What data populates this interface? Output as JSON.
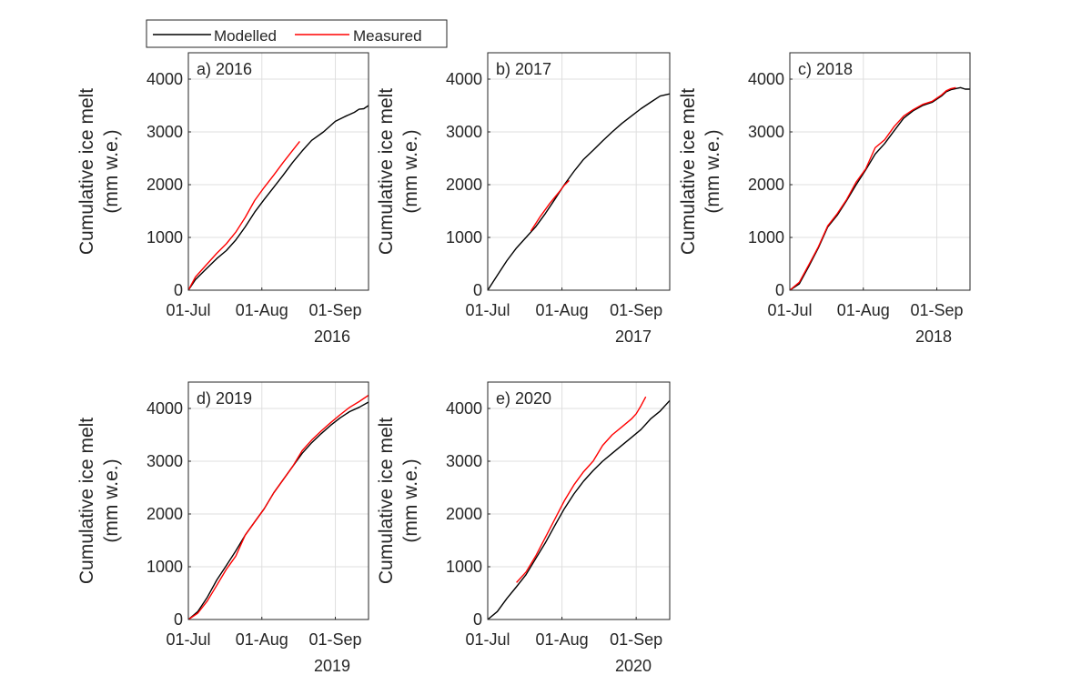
{
  "legend": {
    "entries": [
      {
        "label": "Modelled",
        "color": "#000000"
      },
      {
        "label": "Measured",
        "color": "#ff0000"
      }
    ],
    "placement": "top-left, above panel a"
  },
  "colors": {
    "modelled": "#000000",
    "measured": "#ff0000",
    "grid": "#dfdfdf",
    "axis": "#262626"
  },
  "chart_data": [
    {
      "type": "line",
      "title": "a) 2016",
      "ylabel": [
        "Cumulative ice melt",
        "(mm w.e.)"
      ],
      "xlabel": "2016",
      "xticks": [
        {
          "day": 0,
          "label": "01-Jul"
        },
        {
          "day": 31,
          "label": "01-Aug"
        },
        {
          "day": 62,
          "label": "01-Sep"
        }
      ],
      "xlim_days_from_01_Jul": [
        0,
        76
      ],
      "yticks": [
        0,
        1000,
        2000,
        3000,
        4000
      ],
      "ylim": [
        0,
        4500
      ],
      "grid": true,
      "series": [
        {
          "name": "Modelled",
          "x": [
            0,
            3,
            7,
            12,
            16,
            20,
            24,
            28,
            32,
            36,
            40,
            44,
            48,
            52,
            57,
            62,
            66,
            70,
            72,
            74,
            76
          ],
          "y": [
            0,
            200,
            380,
            600,
            750,
            950,
            1200,
            1480,
            1720,
            1950,
            2180,
            2420,
            2640,
            2840,
            3000,
            3200,
            3290,
            3370,
            3430,
            3440,
            3500
          ]
        },
        {
          "name": "Measured",
          "x": [
            0,
            3,
            7,
            12,
            16,
            20,
            24,
            28,
            32,
            36,
            40,
            44,
            47
          ],
          "y": [
            0,
            250,
            450,
            700,
            880,
            1100,
            1380,
            1700,
            1950,
            2180,
            2420,
            2650,
            2820
          ]
        }
      ]
    },
    {
      "type": "line",
      "title": "b) 2017",
      "ylabel": [
        "Cumulative ice melt",
        "(mm w.e.)"
      ],
      "xlabel": "2017",
      "xticks": [
        {
          "day": 0,
          "label": "01-Jul"
        },
        {
          "day": 31,
          "label": "01-Aug"
        },
        {
          "day": 62,
          "label": "01-Sep"
        }
      ],
      "xlim_days_from_01_Jul": [
        0,
        76
      ],
      "yticks": [
        0,
        1000,
        2000,
        3000,
        4000
      ],
      "ylim": [
        0,
        4500
      ],
      "grid": true,
      "series": [
        {
          "name": "Modelled",
          "x": [
            0,
            4,
            8,
            12,
            16,
            20,
            24,
            28,
            32,
            36,
            40,
            44,
            48,
            52,
            56,
            60,
            64,
            68,
            72,
            76
          ],
          "y": [
            0,
            280,
            560,
            800,
            1000,
            1200,
            1450,
            1720,
            2000,
            2250,
            2480,
            2650,
            2830,
            3000,
            3160,
            3300,
            3440,
            3560,
            3680,
            3720
          ]
        },
        {
          "name": "Measured",
          "x": [
            18,
            22,
            26,
            30,
            32,
            34
          ],
          "y": [
            1120,
            1400,
            1650,
            1870,
            1990,
            2080
          ]
        }
      ]
    },
    {
      "type": "line",
      "title": "c) 2018",
      "ylabel": [
        "Cumulative ice melt",
        "(mm w.e.)"
      ],
      "xlabel": "2018",
      "xticks": [
        {
          "day": 0,
          "label": "01-Jul"
        },
        {
          "day": 31,
          "label": "01-Aug"
        },
        {
          "day": 62,
          "label": "01-Sep"
        }
      ],
      "xlim_days_from_01_Jul": [
        0,
        76
      ],
      "yticks": [
        0,
        1000,
        2000,
        3000,
        4000
      ],
      "ylim": [
        0,
        4500
      ],
      "grid": true,
      "series": [
        {
          "name": "Modelled",
          "x": [
            0,
            4,
            8,
            12,
            16,
            20,
            24,
            28,
            32,
            36,
            40,
            44,
            48,
            52,
            56,
            60,
            64,
            66,
            68,
            70,
            72,
            74,
            76
          ],
          "y": [
            0,
            120,
            450,
            800,
            1200,
            1420,
            1700,
            2000,
            2280,
            2580,
            2780,
            3020,
            3260,
            3400,
            3500,
            3560,
            3680,
            3760,
            3800,
            3820,
            3840,
            3810,
            3810
          ]
        },
        {
          "name": "Measured",
          "x": [
            0,
            4,
            8,
            12,
            16,
            20,
            24,
            28,
            32,
            36,
            40,
            44,
            48,
            52,
            56,
            60,
            64,
            66,
            68,
            70
          ],
          "y": [
            0,
            150,
            480,
            820,
            1220,
            1450,
            1720,
            2050,
            2300,
            2700,
            2850,
            3100,
            3300,
            3420,
            3520,
            3580,
            3700,
            3780,
            3820,
            3840
          ]
        }
      ]
    },
    {
      "type": "line",
      "title": "d) 2019",
      "ylabel": [
        "Cumulative ice melt",
        "(mm w.e.)"
      ],
      "xlabel": "2019",
      "xticks": [
        {
          "day": 0,
          "label": "01-Jul"
        },
        {
          "day": 31,
          "label": "01-Aug"
        },
        {
          "day": 62,
          "label": "01-Sep"
        }
      ],
      "xlim_days_from_01_Jul": [
        0,
        76
      ],
      "yticks": [
        0,
        1000,
        2000,
        3000,
        4000
      ],
      "ylim": [
        0,
        4500
      ],
      "grid": true,
      "series": [
        {
          "name": "Modelled",
          "x": [
            0,
            4,
            8,
            12,
            16,
            20,
            24,
            28,
            32,
            36,
            40,
            44,
            48,
            52,
            56,
            60,
            64,
            68,
            72,
            76
          ],
          "y": [
            0,
            150,
            420,
            750,
            1020,
            1300,
            1600,
            1850,
            2100,
            2400,
            2650,
            2900,
            3150,
            3350,
            3520,
            3680,
            3820,
            3940,
            4020,
            4120
          ]
        },
        {
          "name": "Measured",
          "x": [
            0,
            4,
            8,
            12,
            16,
            20,
            24,
            28,
            32,
            36,
            40,
            44,
            48,
            52,
            56,
            60,
            64,
            68,
            72,
            76
          ],
          "y": [
            0,
            120,
            350,
            650,
            950,
            1200,
            1600,
            1850,
            2100,
            2400,
            2650,
            2900,
            3200,
            3400,
            3570,
            3730,
            3880,
            4020,
            4130,
            4250
          ]
        }
      ]
    },
    {
      "type": "line",
      "title": "e) 2020",
      "ylabel": [
        "Cumulative ice melt",
        "(mm w.e.)"
      ],
      "xlabel": "2020",
      "xticks": [
        {
          "day": 0,
          "label": "01-Jul"
        },
        {
          "day": 31,
          "label": "01-Aug"
        },
        {
          "day": 62,
          "label": "01-Sep"
        }
      ],
      "xlim_days_from_01_Jul": [
        0,
        76
      ],
      "yticks": [
        0,
        1000,
        2000,
        3000,
        4000
      ],
      "ylim": [
        0,
        4500
      ],
      "grid": true,
      "series": [
        {
          "name": "Modelled",
          "x": [
            0,
            4,
            8,
            12,
            16,
            20,
            24,
            28,
            32,
            36,
            40,
            44,
            48,
            52,
            56,
            60,
            64,
            68,
            72,
            76
          ],
          "y": [
            0,
            150,
            400,
            620,
            850,
            1150,
            1450,
            1780,
            2100,
            2380,
            2620,
            2820,
            3000,
            3150,
            3300,
            3450,
            3600,
            3800,
            3950,
            4150
          ]
        },
        {
          "name": "Measured",
          "x": [
            12,
            16,
            20,
            24,
            28,
            32,
            36,
            40,
            44,
            48,
            52,
            56,
            60,
            62,
            64,
            66
          ],
          "y": [
            700,
            900,
            1200,
            1550,
            1900,
            2250,
            2550,
            2800,
            3000,
            3300,
            3500,
            3650,
            3800,
            3900,
            4050,
            4220
          ]
        }
      ]
    }
  ]
}
